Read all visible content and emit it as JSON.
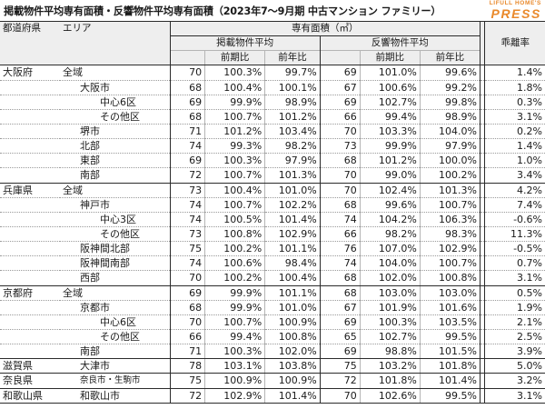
{
  "title": "掲載物件平均専有面積・反響物件平均専有面積（2023年7～9月期 中古マンション ファミリー）",
  "brand": {
    "top": "LIFULL HOME'S",
    "main": "PRESS",
    "color": "#e9892b"
  },
  "header": {
    "pref": "都道府県",
    "area": "エリア",
    "sq_area": "専有面積（㎡）",
    "listed": "掲載物件平均",
    "inquired": "反響物件平均",
    "divergence": "乖離率",
    "prev_period": "前期比",
    "prev_year": "前年比"
  },
  "rows": [
    {
      "pref": "大阪府",
      "area": "全域",
      "level": 0,
      "l": "70",
      "lq": "100.3%",
      "ly": "99.7%",
      "r": "69",
      "rq": "101.0%",
      "ry": "99.6%",
      "d": "1.4%"
    },
    {
      "pref": "",
      "area": "大阪市",
      "level": 1,
      "l": "68",
      "lq": "100.4%",
      "ly": "100.1%",
      "r": "67",
      "rq": "100.6%",
      "ry": "99.2%",
      "d": "1.8%"
    },
    {
      "pref": "",
      "area": "中心6区",
      "level": 2,
      "l": "69",
      "lq": "99.9%",
      "ly": "98.9%",
      "r": "69",
      "rq": "102.7%",
      "ry": "99.8%",
      "d": "0.3%"
    },
    {
      "pref": "",
      "area": "その他区",
      "level": 2,
      "l": "68",
      "lq": "100.7%",
      "ly": "101.2%",
      "r": "66",
      "rq": "99.4%",
      "ry": "98.9%",
      "d": "3.1%"
    },
    {
      "pref": "",
      "area": "堺市",
      "level": 1,
      "l": "71",
      "lq": "101.2%",
      "ly": "103.4%",
      "r": "70",
      "rq": "103.3%",
      "ry": "104.0%",
      "d": "0.2%"
    },
    {
      "pref": "",
      "area": "北部",
      "level": 1,
      "l": "74",
      "lq": "99.3%",
      "ly": "98.2%",
      "r": "73",
      "rq": "99.9%",
      "ry": "97.9%",
      "d": "1.4%"
    },
    {
      "pref": "",
      "area": "東部",
      "level": 1,
      "l": "69",
      "lq": "100.3%",
      "ly": "97.9%",
      "r": "68",
      "rq": "101.2%",
      "ry": "100.0%",
      "d": "1.0%"
    },
    {
      "pref": "",
      "area": "南部",
      "level": 1,
      "l": "72",
      "lq": "100.7%",
      "ly": "101.3%",
      "r": "70",
      "rq": "99.0%",
      "ry": "100.2%",
      "d": "3.4%"
    },
    {
      "pref": "兵庫県",
      "area": "全域",
      "level": 0,
      "l": "73",
      "lq": "100.4%",
      "ly": "101.0%",
      "r": "70",
      "rq": "102.4%",
      "ry": "101.3%",
      "d": "4.2%"
    },
    {
      "pref": "",
      "area": "神戸市",
      "level": 1,
      "l": "74",
      "lq": "100.7%",
      "ly": "102.2%",
      "r": "68",
      "rq": "99.6%",
      "ry": "100.7%",
      "d": "7.4%"
    },
    {
      "pref": "",
      "area": "中心3区",
      "level": 2,
      "l": "74",
      "lq": "100.5%",
      "ly": "101.4%",
      "r": "74",
      "rq": "104.2%",
      "ry": "106.3%",
      "d": "-0.6%"
    },
    {
      "pref": "",
      "area": "その他区",
      "level": 2,
      "l": "73",
      "lq": "100.8%",
      "ly": "102.9%",
      "r": "66",
      "rq": "98.2%",
      "ry": "98.3%",
      "d": "11.3%"
    },
    {
      "pref": "",
      "area": "阪神間北部",
      "level": 1,
      "l": "75",
      "lq": "100.2%",
      "ly": "101.1%",
      "r": "76",
      "rq": "107.0%",
      "ry": "102.9%",
      "d": "-0.5%"
    },
    {
      "pref": "",
      "area": "阪神間南部",
      "level": 1,
      "l": "74",
      "lq": "100.6%",
      "ly": "98.4%",
      "r": "74",
      "rq": "104.0%",
      "ry": "100.7%",
      "d": "0.7%"
    },
    {
      "pref": "",
      "area": "西部",
      "level": 1,
      "l": "70",
      "lq": "100.2%",
      "ly": "100.4%",
      "r": "68",
      "rq": "102.0%",
      "ry": "100.8%",
      "d": "3.1%"
    },
    {
      "pref": "京都府",
      "area": "全域",
      "level": 0,
      "l": "69",
      "lq": "99.9%",
      "ly": "101.1%",
      "r": "68",
      "rq": "103.0%",
      "ry": "103.0%",
      "d": "0.5%"
    },
    {
      "pref": "",
      "area": "京都市",
      "level": 1,
      "l": "68",
      "lq": "99.9%",
      "ly": "101.0%",
      "r": "67",
      "rq": "101.9%",
      "ry": "101.6%",
      "d": "1.9%"
    },
    {
      "pref": "",
      "area": "中心6区",
      "level": 2,
      "l": "70",
      "lq": "100.7%",
      "ly": "100.9%",
      "r": "69",
      "rq": "100.3%",
      "ry": "103.5%",
      "d": "2.1%"
    },
    {
      "pref": "",
      "area": "その他区",
      "level": 2,
      "l": "66",
      "lq": "99.4%",
      "ly": "100.8%",
      "r": "65",
      "rq": "102.7%",
      "ry": "99.5%",
      "d": "2.5%"
    },
    {
      "pref": "",
      "area": "南部",
      "level": 1,
      "l": "71",
      "lq": "100.3%",
      "ly": "102.0%",
      "r": "69",
      "rq": "98.8%",
      "ry": "101.5%",
      "d": "3.9%"
    },
    {
      "pref": "滋賀県",
      "area": "大津市",
      "level": 1,
      "l": "78",
      "lq": "103.1%",
      "ly": "103.8%",
      "r": "75",
      "rq": "103.2%",
      "ry": "101.8%",
      "d": "5.0%"
    },
    {
      "pref": "奈良県",
      "area": "奈良市・生駒市",
      "level": 1,
      "small": true,
      "l": "75",
      "lq": "100.9%",
      "ly": "100.9%",
      "r": "72",
      "rq": "101.8%",
      "ry": "101.4%",
      "d": "3.2%"
    },
    {
      "pref": "和歌山県",
      "area": "和歌山市",
      "level": 1,
      "l": "72",
      "lq": "102.9%",
      "ly": "101.4%",
      "r": "70",
      "rq": "102.6%",
      "ry": "99.5%",
      "d": "3.1%"
    }
  ]
}
